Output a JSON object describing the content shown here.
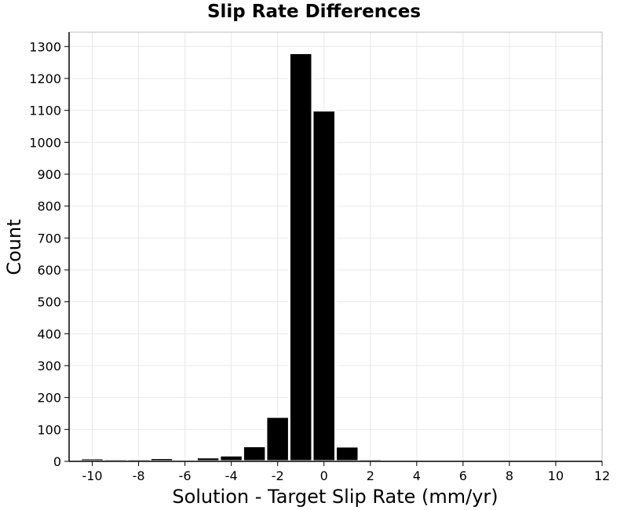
{
  "chart_data": {
    "type": "bar",
    "title": "Slip Rate Differences",
    "xlabel": "Solution - Target Slip Rate (mm/yr)",
    "ylabel": "Count",
    "xlim": [
      -11,
      12
    ],
    "ylim": [
      0,
      1345
    ],
    "grid": true,
    "bin_width": 1,
    "x_ticks": [
      -10,
      -8,
      -6,
      -4,
      -2,
      0,
      2,
      4,
      6,
      8,
      10,
      12
    ],
    "y_ticks": [
      0,
      100,
      200,
      300,
      400,
      500,
      600,
      700,
      800,
      900,
      1000,
      1100,
      1200,
      1300
    ],
    "bins": [
      {
        "center": -10,
        "value": 10
      },
      {
        "center": -9,
        "value": 8
      },
      {
        "center": -8,
        "value": 8
      },
      {
        "center": -7,
        "value": 11
      },
      {
        "center": -6,
        "value": 7
      },
      {
        "center": -5,
        "value": 13
      },
      {
        "center": -4,
        "value": 19
      },
      {
        "center": -3,
        "value": 48
      },
      {
        "center": -2,
        "value": 140
      },
      {
        "center": -1,
        "value": 1280
      },
      {
        "center": 0,
        "value": 1100
      },
      {
        "center": 1,
        "value": 47
      },
      {
        "center": 2,
        "value": 8
      },
      {
        "center": 3,
        "value": 3
      }
    ],
    "colors": {
      "bar": "#000000",
      "bar_edge": "#ffffff",
      "grid": "#e8e8e8",
      "frame": "#bfbfbf",
      "axis_line": "#000000"
    }
  }
}
